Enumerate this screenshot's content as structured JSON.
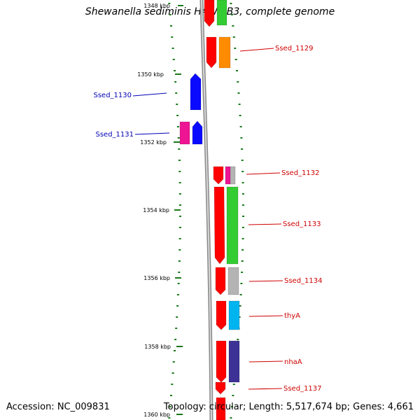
{
  "title": "Shewanella sediminis HAW-EB3, complete genome",
  "footer": {
    "accession": "Accession: NC_009831",
    "summary": "Topology: circular; Length: 5,517,674 bp; Genes: 4,661"
  },
  "ticks": [
    "1348 kbp",
    "1350 kbp",
    "1352 kbp",
    "1354 kbp",
    "1356 kbp",
    "1358 kbp",
    "1360 kbp"
  ],
  "colors": {
    "backbone": "#a8a8a8",
    "tick": "#1a7a1a",
    "forward_label": "#0000b4",
    "reverse_label": "#d00000",
    "cds": "#ff0000",
    "blue_gene": "#0a0aff",
    "magenta_gene": "#ee1493",
    "green_gene": "#33cc33",
    "orange_gene": "#ff8c00",
    "gray_gene": "#b4b4b4",
    "cyan_gene": "#00b4f0",
    "navy_gene": "#3c3296"
  },
  "genes": {
    "forward": [
      "Ssed_1130",
      "Ssed_1131"
    ],
    "reverse": [
      "Ssed_1129",
      "Ssed_1132",
      "Ssed_1133",
      "Ssed_1134",
      "thyA",
      "nhaA",
      "Ssed_1137"
    ]
  }
}
